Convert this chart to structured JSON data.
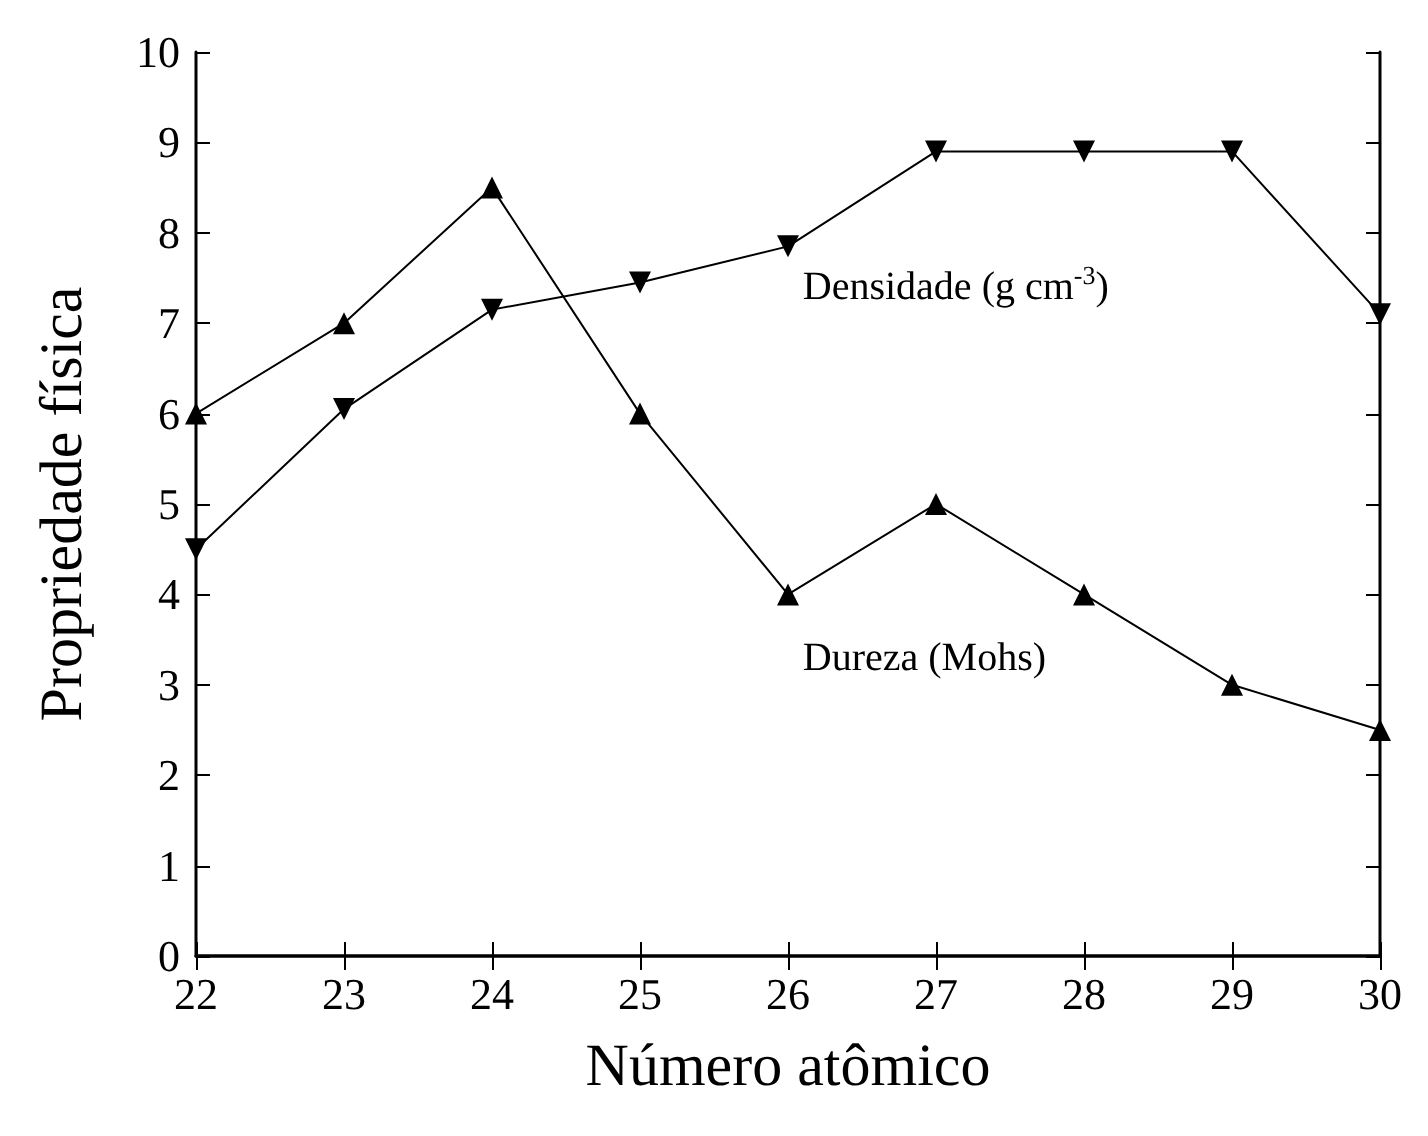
{
  "chart_data": {
    "type": "line",
    "xlabel": "Número atômico",
    "ylabel": "Propriedade física",
    "x": [
      22,
      23,
      24,
      25,
      26,
      27,
      28,
      29,
      30
    ],
    "xlim": [
      22,
      30
    ],
    "xticks": [
      22,
      23,
      24,
      25,
      26,
      27,
      28,
      29,
      30
    ],
    "ylim": [
      0,
      10
    ],
    "yticks": [
      0,
      1,
      2,
      3,
      4,
      5,
      6,
      7,
      8,
      9,
      10
    ],
    "grid": false,
    "legend": false,
    "line_style": "solid",
    "series": [
      {
        "name": "Densidade (g cm$^{-3}$)",
        "color": "#000000",
        "marker": "triangle-down",
        "values": [
          4.5,
          6.05,
          7.15,
          7.45,
          7.85,
          8.9,
          8.9,
          8.9,
          7.1
        ]
      },
      {
        "name": "Dureza (Mohs)",
        "color": "#000000",
        "marker": "triangle",
        "values": [
          6,
          7,
          8.5,
          6,
          4,
          5,
          4,
          3,
          2.5
        ]
      }
    ]
  }
}
